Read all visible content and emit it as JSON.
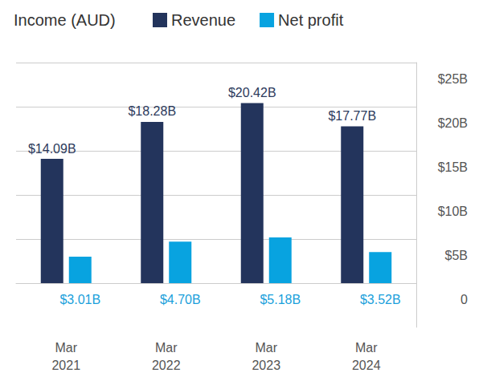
{
  "chart_data": {
    "type": "bar",
    "title": "Income (AUD)",
    "categories": [
      "Mar 2021",
      "Mar 2022",
      "Mar 2023",
      "Mar 2024"
    ],
    "series": [
      {
        "name": "Revenue",
        "color": "#23345c",
        "values": [
          14.09,
          18.28,
          20.42,
          17.77
        ],
        "value_labels": [
          "$14.09B",
          "$18.28B",
          "$20.42B",
          "$17.77B"
        ]
      },
      {
        "name": "Net profit",
        "color": "#08a3e0",
        "values": [
          3.01,
          4.7,
          5.18,
          3.52
        ],
        "value_labels": [
          "$3.01B",
          "$4.70B",
          "$5.18B",
          "$3.52B"
        ]
      }
    ],
    "ylim": [
      -5,
      25
    ],
    "yticks": [
      0,
      {
        "value": 5,
        "label": "$5B"
      },
      {
        "value": 10,
        "label": "$10B"
      },
      {
        "value": 15,
        "label": "$15B"
      },
      {
        "value": 20,
        "label": "$20B"
      },
      {
        "value": 25,
        "label": "$25B"
      }
    ],
    "grid": true,
    "legend": "top",
    "data_labels": true
  }
}
